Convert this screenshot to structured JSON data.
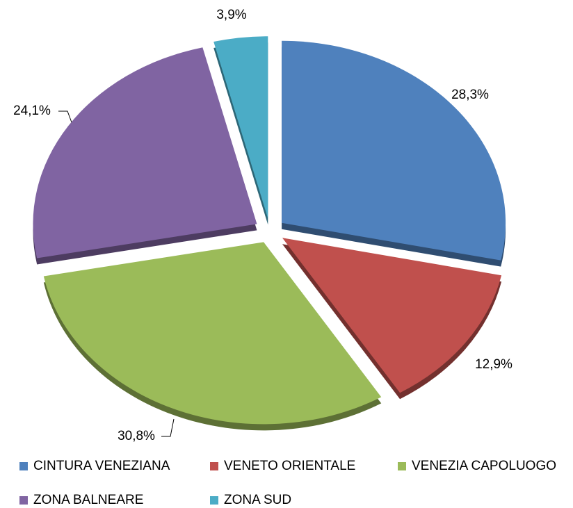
{
  "chart_data": {
    "type": "pie",
    "categories": [
      "CINTURA VENEZIANA",
      "VENETO ORIENTALE",
      "VENEZIA CAPOLUOGO",
      "ZONA BALNEARE",
      "ZONA SUD"
    ],
    "values": [
      28.3,
      12.9,
      30.8,
      24.1,
      3.9
    ],
    "value_labels": [
      "28,3%",
      "12,9%",
      "30,8%",
      "24,1%",
      "3,9%"
    ],
    "colors": [
      "#4f81bd",
      "#c0504d",
      "#9bbb59",
      "#8064a2",
      "#4bacc6"
    ],
    "legend": "bottom"
  }
}
